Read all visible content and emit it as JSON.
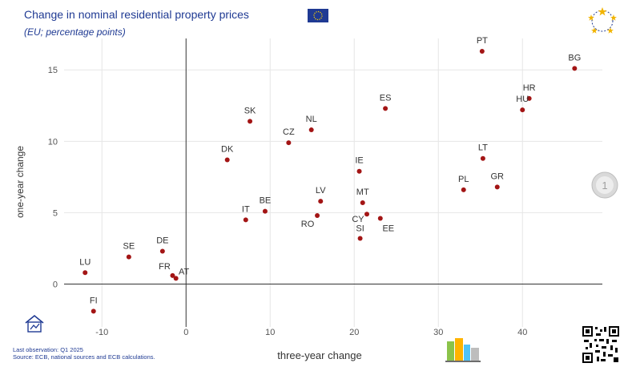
{
  "header": {
    "title": "Change in nominal residential property prices",
    "subtitle": "(EU; percentage points)"
  },
  "footer": {
    "last_observation": "Last observation: Q1 2025",
    "source": "Source: ECB, national sources and ECB calculations."
  },
  "icons": [
    "eu-flag-icon",
    "stars-emblem-icon",
    "euro-coin-icon",
    "house-icon",
    "city-buildings-icon",
    "qr-code-icon"
  ],
  "colors": {
    "points": "#a31515",
    "title": "#1f3a93",
    "grid": "#e6e6e6",
    "axis": "#333333"
  },
  "chart_data": {
    "type": "scatter",
    "xlabel": "three-year change",
    "ylabel": "one-year change",
    "xlim": [
      -14.5,
      49.5
    ],
    "ylim": [
      -3.0,
      17.2
    ],
    "xticks": [
      -10,
      0,
      10,
      20,
      30,
      40
    ],
    "yticks": [
      0,
      5,
      10,
      15
    ],
    "grid": true,
    "points": [
      {
        "label": "PT",
        "x": 35.2,
        "y": 16.3
      },
      {
        "label": "BG",
        "x": 46.2,
        "y": 15.1
      },
      {
        "label": "HR",
        "x": 40.8,
        "y": 13.0
      },
      {
        "label": "HU",
        "x": 40.0,
        "y": 12.2
      },
      {
        "label": "ES",
        "x": 23.7,
        "y": 12.3
      },
      {
        "label": "SK",
        "x": 7.6,
        "y": 11.4
      },
      {
        "label": "NL",
        "x": 14.9,
        "y": 10.8
      },
      {
        "label": "CZ",
        "x": 12.2,
        "y": 9.9
      },
      {
        "label": "DK",
        "x": 4.9,
        "y": 8.7
      },
      {
        "label": "IE",
        "x": 20.6,
        "y": 7.9
      },
      {
        "label": "LT",
        "x": 35.3,
        "y": 8.8
      },
      {
        "label": "PL",
        "x": 33.0,
        "y": 6.6
      },
      {
        "label": "GR",
        "x": 37.0,
        "y": 6.8
      },
      {
        "label": "LV",
        "x": 16.0,
        "y": 5.8
      },
      {
        "label": "MT",
        "x": 21.0,
        "y": 5.7
      },
      {
        "label": "BE",
        "x": 9.4,
        "y": 5.1
      },
      {
        "label": "IT",
        "x": 7.1,
        "y": 4.5
      },
      {
        "label": "RO",
        "x": 15.6,
        "y": 4.8
      },
      {
        "label": "CY",
        "x": 21.5,
        "y": 4.9
      },
      {
        "label": "EE",
        "x": 23.1,
        "y": 4.6
      },
      {
        "label": "SI",
        "x": 20.7,
        "y": 3.2
      },
      {
        "label": "SE",
        "x": -6.8,
        "y": 1.9
      },
      {
        "label": "DE",
        "x": -2.8,
        "y": 2.3
      },
      {
        "label": "LU",
        "x": -12.0,
        "y": 0.8
      },
      {
        "label": "FR",
        "x": -1.6,
        "y": 0.6
      },
      {
        "label": "AT",
        "x": -1.2,
        "y": 0.4
      },
      {
        "label": "FI",
        "x": -11.0,
        "y": -1.9
      }
    ]
  }
}
